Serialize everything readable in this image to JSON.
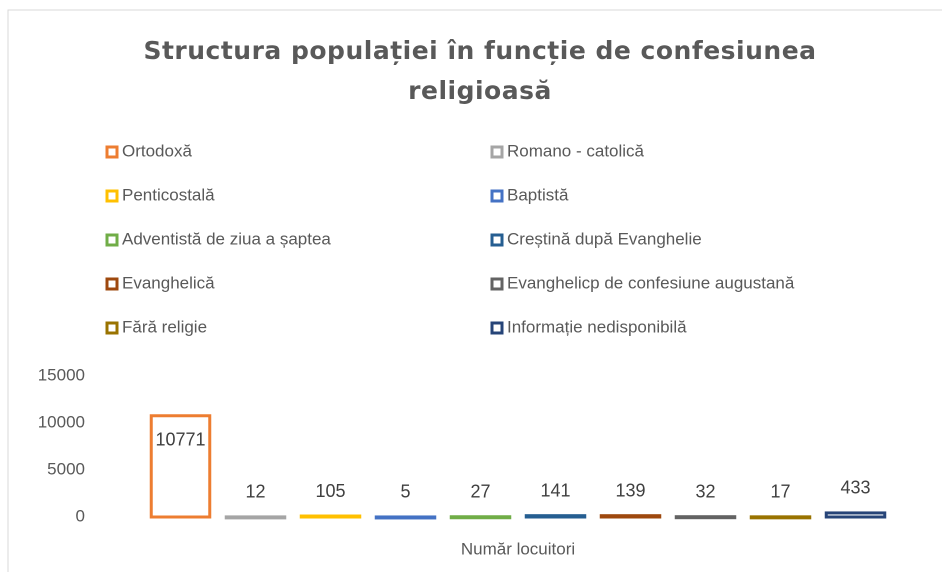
{
  "chart_data": {
    "type": "bar",
    "title": "Structura populației în funcție de confesiunea religioasă",
    "title_lines": [
      "Structura populației în funcție de confesiunea",
      "religioasă"
    ],
    "categories": [
      "Număr locuitori"
    ],
    "series": [
      {
        "name": "Ortodoxă",
        "color": "#ed7d31",
        "values": [
          10771
        ]
      },
      {
        "name": "Romano - catolică",
        "color": "#a5a5a5",
        "values": [
          12
        ]
      },
      {
        "name": "Penticostală",
        "color": "#ffc000",
        "values": [
          105
        ]
      },
      {
        "name": "Baptistă",
        "color": "#4472c4",
        "values": [
          5
        ]
      },
      {
        "name": "Adventistă de ziua a șaptea",
        "color": "#70ad47",
        "values": [
          27
        ]
      },
      {
        "name": "Creștină după Evanghelie",
        "color": "#255e91",
        "values": [
          141
        ]
      },
      {
        "name": "Evanghelică",
        "color": "#9e480e",
        "values": [
          139
        ]
      },
      {
        "name": "Evanghelicp de confesiune augustană",
        "color": "#636363",
        "values": [
          32
        ]
      },
      {
        "name": "Fără religie",
        "color": "#997300",
        "values": [
          17
        ]
      },
      {
        "name": "Informație nedisponibilă",
        "color": "#264478",
        "values": [
          433
        ]
      }
    ],
    "ylim": [
      0,
      15000
    ],
    "yticks": [
      0,
      5000,
      10000,
      15000
    ],
    "grid": false,
    "legend": "top"
  }
}
